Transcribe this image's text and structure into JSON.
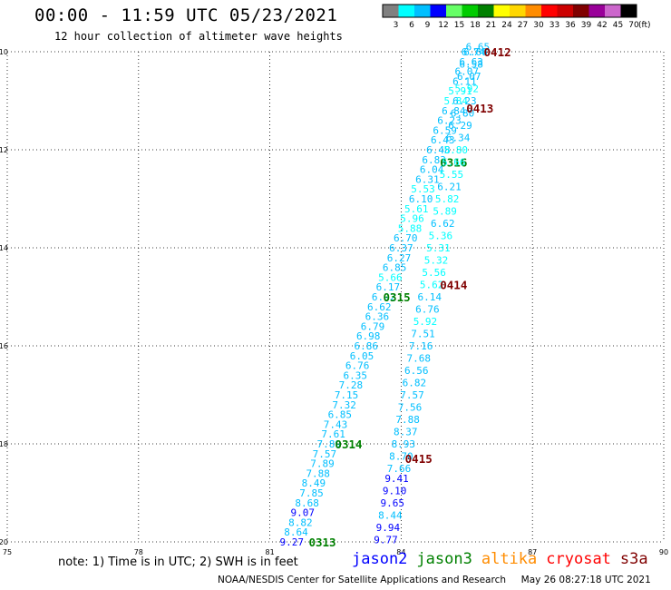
{
  "header": {
    "title": "00:00 - 11:59 UTC 05/23/2021",
    "subtitle": "12 hour collection of altimeter wave heights"
  },
  "legend": {
    "unit": "(ft)",
    "bins": [
      {
        "label": "3",
        "color": "#808080"
      },
      {
        "label": "6",
        "color": "#00ffff"
      },
      {
        "label": "9",
        "color": "#00bfff"
      },
      {
        "label": "12",
        "color": "#0000ff"
      },
      {
        "label": "15",
        "color": "#66ff66"
      },
      {
        "label": "18",
        "color": "#00cc00"
      },
      {
        "label": "21",
        "color": "#008000"
      },
      {
        "label": "24",
        "color": "#ffff00"
      },
      {
        "label": "27",
        "color": "#ffd700"
      },
      {
        "label": "30",
        "color": "#ff8c00"
      },
      {
        "label": "33",
        "color": "#ff0000"
      },
      {
        "label": "36",
        "color": "#cc0000"
      },
      {
        "label": "39",
        "color": "#800000"
      },
      {
        "label": "42",
        "color": "#990099"
      },
      {
        "label": "45",
        "color": "#cc66cc"
      },
      {
        "label": "70",
        "color": "#000000"
      }
    ]
  },
  "chart_data": {
    "type": "scatter",
    "title": "00:00 - 11:59 UTC 05/23/2021",
    "subtitle": "12 hour collection of altimeter wave heights",
    "xlabel": "",
    "ylabel": "",
    "xlim": [
      75,
      90
    ],
    "ylim": [
      -20,
      -10
    ],
    "x_ticks": [
      "75",
      "78",
      "81",
      "84",
      "87",
      "90"
    ],
    "y_ticks": [
      "-10",
      "-12",
      "-14",
      "-16",
      "-18",
      "-20"
    ],
    "grid": true,
    "series": [
      {
        "name": "jason3",
        "pass_labels": [
          {
            "text": "0313",
            "x": 82.2,
            "y": -20.0
          },
          {
            "text": "0314",
            "x": 82.8,
            "y": -18.0
          },
          {
            "text": "0315",
            "x": 83.9,
            "y": -15.0
          },
          {
            "text": "0316",
            "x": 85.2,
            "y": -12.25
          }
        ],
        "points": [
          {
            "x": 81.5,
            "y": -20.0,
            "v": "9.27",
            "c": "#0000ff"
          },
          {
            "x": 81.6,
            "y": -19.8,
            "v": "8.64",
            "c": "#00bfff"
          },
          {
            "x": 81.7,
            "y": -19.6,
            "v": "8.82",
            "c": "#00bfff"
          },
          {
            "x": 81.75,
            "y": -19.4,
            "v": "9.07",
            "c": "#0000ff"
          },
          {
            "x": 81.85,
            "y": -19.2,
            "v": "8.68",
            "c": "#00bfff"
          },
          {
            "x": 81.95,
            "y": -19.0,
            "v": "7.85",
            "c": "#00bfff"
          },
          {
            "x": 82.0,
            "y": -18.8,
            "v": "8.49",
            "c": "#00bfff"
          },
          {
            "x": 82.1,
            "y": -18.6,
            "v": "7.88",
            "c": "#00bfff"
          },
          {
            "x": 82.2,
            "y": -18.4,
            "v": "7.89",
            "c": "#00bfff"
          },
          {
            "x": 82.25,
            "y": -18.2,
            "v": "7.57",
            "c": "#00bfff"
          },
          {
            "x": 82.35,
            "y": -18.0,
            "v": "7.89",
            "c": "#00bfff"
          },
          {
            "x": 82.45,
            "y": -17.8,
            "v": "7.61",
            "c": "#00bfff"
          },
          {
            "x": 82.5,
            "y": -17.6,
            "v": "7.43",
            "c": "#00bfff"
          },
          {
            "x": 82.6,
            "y": -17.4,
            "v": "6.85",
            "c": "#00bfff"
          },
          {
            "x": 82.7,
            "y": -17.2,
            "v": "7.32",
            "c": "#00bfff"
          },
          {
            "x": 82.75,
            "y": -17.0,
            "v": "7.15",
            "c": "#00bfff"
          },
          {
            "x": 82.85,
            "y": -16.8,
            "v": "7.28",
            "c": "#00bfff"
          },
          {
            "x": 82.95,
            "y": -16.6,
            "v": "6.35",
            "c": "#00bfff"
          },
          {
            "x": 83.0,
            "y": -16.4,
            "v": "6.76",
            "c": "#00bfff"
          },
          {
            "x": 83.1,
            "y": -16.2,
            "v": "6.05",
            "c": "#00bfff"
          },
          {
            "x": 83.2,
            "y": -16.0,
            "v": "6.86",
            "c": "#00bfff"
          },
          {
            "x": 83.25,
            "y": -15.8,
            "v": "6.98",
            "c": "#00bfff"
          },
          {
            "x": 83.35,
            "y": -15.6,
            "v": "6.79",
            "c": "#00bfff"
          },
          {
            "x": 83.45,
            "y": -15.4,
            "v": "6.36",
            "c": "#00bfff"
          },
          {
            "x": 83.5,
            "y": -15.2,
            "v": "6.62",
            "c": "#00bfff"
          },
          {
            "x": 83.6,
            "y": -15.0,
            "v": "6.92",
            "c": "#00bfff"
          },
          {
            "x": 83.7,
            "y": -14.8,
            "v": "6.17",
            "c": "#00bfff"
          },
          {
            "x": 83.75,
            "y": -14.6,
            "v": "5.66",
            "c": "#00ffff"
          },
          {
            "x": 83.85,
            "y": -14.4,
            "v": "6.85",
            "c": "#00bfff"
          },
          {
            "x": 83.95,
            "y": -14.2,
            "v": "6.27",
            "c": "#00bfff"
          },
          {
            "x": 84.0,
            "y": -14.0,
            "v": "6.37",
            "c": "#00bfff"
          },
          {
            "x": 84.1,
            "y": -13.8,
            "v": "6.70",
            "c": "#00bfff"
          },
          {
            "x": 84.2,
            "y": -13.6,
            "v": "5.88",
            "c": "#00ffff"
          },
          {
            "x": 84.25,
            "y": -13.4,
            "v": "5.96",
            "c": "#00ffff"
          },
          {
            "x": 84.35,
            "y": -13.2,
            "v": "5.61",
            "c": "#00ffff"
          },
          {
            "x": 84.45,
            "y": -13.0,
            "v": "6.10",
            "c": "#00bfff"
          },
          {
            "x": 84.5,
            "y": -12.8,
            "v": "5.53",
            "c": "#00ffff"
          },
          {
            "x": 84.6,
            "y": -12.6,
            "v": "6.31",
            "c": "#00bfff"
          },
          {
            "x": 84.7,
            "y": -12.4,
            "v": "6.04",
            "c": "#00bfff"
          },
          {
            "x": 84.75,
            "y": -12.2,
            "v": "6.83",
            "c": "#00bfff"
          },
          {
            "x": 84.85,
            "y": -12.0,
            "v": "6.48",
            "c": "#00bfff"
          },
          {
            "x": 84.95,
            "y": -11.8,
            "v": "6.43",
            "c": "#00bfff"
          },
          {
            "x": 85.0,
            "y": -11.6,
            "v": "6.59",
            "c": "#00bfff"
          },
          {
            "x": 85.1,
            "y": -11.4,
            "v": "6.23",
            "c": "#00bfff"
          },
          {
            "x": 85.2,
            "y": -11.2,
            "v": "6.84",
            "c": "#00bfff"
          },
          {
            "x": 85.25,
            "y": -11.0,
            "v": "5.84",
            "c": "#00ffff"
          },
          {
            "x": 85.35,
            "y": -10.8,
            "v": "5.91",
            "c": "#00ffff"
          },
          {
            "x": 85.45,
            "y": -10.6,
            "v": "6.11",
            "c": "#00bfff"
          },
          {
            "x": 85.5,
            "y": -10.4,
            "v": "6.07",
            "c": "#00bfff"
          },
          {
            "x": 85.6,
            "y": -10.2,
            "v": "6.63",
            "c": "#00bfff"
          },
          {
            "x": 85.7,
            "y": -10.0,
            "v": "6.66",
            "c": "#00bfff"
          }
        ]
      },
      {
        "name": "cryosat",
        "pass_labels": [
          {
            "text": "0412",
            "x": 86.2,
            "y": -10.0
          },
          {
            "text": "0413",
            "x": 85.8,
            "y": -11.15
          },
          {
            "text": "0414",
            "x": 85.2,
            "y": -14.75
          },
          {
            "text": "0415",
            "x": 84.4,
            "y": -18.3
          }
        ],
        "points": [
          {
            "x": 83.65,
            "y": -19.95,
            "v": "9.77",
            "c": "#0000ff"
          },
          {
            "x": 83.7,
            "y": -19.7,
            "v": "9.94",
            "c": "#0000ff"
          },
          {
            "x": 83.75,
            "y": -19.45,
            "v": "8.44",
            "c": "#00bfff"
          },
          {
            "x": 83.8,
            "y": -19.2,
            "v": "9.65",
            "c": "#0000ff"
          },
          {
            "x": 83.85,
            "y": -18.95,
            "v": "9.10",
            "c": "#0000ff"
          },
          {
            "x": 83.9,
            "y": -18.7,
            "v": "9.41",
            "c": "#0000ff"
          },
          {
            "x": 83.95,
            "y": -18.5,
            "v": "7.66",
            "c": "#00bfff"
          },
          {
            "x": 84.0,
            "y": -18.25,
            "v": "8.70",
            "c": "#00bfff"
          },
          {
            "x": 84.05,
            "y": -18.0,
            "v": "8.93",
            "c": "#00bfff"
          },
          {
            "x": 84.1,
            "y": -17.75,
            "v": "8.37",
            "c": "#00bfff"
          },
          {
            "x": 84.15,
            "y": -17.5,
            "v": "7.88",
            "c": "#00bfff"
          },
          {
            "x": 84.2,
            "y": -17.25,
            "v": "7.56",
            "c": "#00bfff"
          },
          {
            "x": 84.25,
            "y": -17.0,
            "v": "7.57",
            "c": "#00bfff"
          },
          {
            "x": 84.3,
            "y": -16.75,
            "v": "6.82",
            "c": "#00bfff"
          },
          {
            "x": 84.35,
            "y": -16.5,
            "v": "6.56",
            "c": "#00bfff"
          },
          {
            "x": 84.4,
            "y": -16.25,
            "v": "7.68",
            "c": "#00bfff"
          },
          {
            "x": 84.45,
            "y": -16.0,
            "v": "7.16",
            "c": "#00bfff"
          },
          {
            "x": 84.5,
            "y": -15.75,
            "v": "7.51",
            "c": "#00bfff"
          },
          {
            "x": 84.55,
            "y": -15.5,
            "v": "5.92",
            "c": "#00ffff"
          },
          {
            "x": 84.6,
            "y": -15.25,
            "v": "6.76",
            "c": "#00bfff"
          },
          {
            "x": 84.65,
            "y": -15.0,
            "v": "6.14",
            "c": "#00bfff"
          },
          {
            "x": 84.7,
            "y": -14.75,
            "v": "5.62",
            "c": "#00ffff"
          },
          {
            "x": 84.75,
            "y": -14.5,
            "v": "5.56",
            "c": "#00ffff"
          },
          {
            "x": 84.8,
            "y": -14.25,
            "v": "5.32",
            "c": "#00ffff"
          },
          {
            "x": 84.85,
            "y": -14.0,
            "v": "5.31",
            "c": "#00ffff"
          },
          {
            "x": 84.9,
            "y": -13.75,
            "v": "5.36",
            "c": "#00ffff"
          },
          {
            "x": 84.95,
            "y": -13.5,
            "v": "6.62",
            "c": "#00bfff"
          },
          {
            "x": 85.0,
            "y": -13.25,
            "v": "5.89",
            "c": "#00ffff"
          },
          {
            "x": 85.05,
            "y": -13.0,
            "v": "5.82",
            "c": "#00ffff"
          },
          {
            "x": 85.1,
            "y": -12.75,
            "v": "6.21",
            "c": "#00bfff"
          },
          {
            "x": 85.15,
            "y": -12.5,
            "v": "5.55",
            "c": "#00ffff"
          },
          {
            "x": 85.2,
            "y": -12.25,
            "v": "5.66",
            "c": "#00ffff"
          },
          {
            "x": 85.25,
            "y": -12.0,
            "v": "5.80",
            "c": "#00ffff"
          },
          {
            "x": 85.3,
            "y": -11.75,
            "v": "6.34",
            "c": "#00bfff"
          },
          {
            "x": 85.35,
            "y": -11.5,
            "v": "6.29",
            "c": "#00bfff"
          },
          {
            "x": 85.4,
            "y": -11.25,
            "v": "6.80",
            "c": "#00bfff"
          },
          {
            "x": 85.45,
            "y": -11.0,
            "v": "6.23",
            "c": "#00bfff"
          },
          {
            "x": 85.5,
            "y": -10.75,
            "v": "5.92",
            "c": "#00ffff"
          },
          {
            "x": 85.55,
            "y": -10.5,
            "v": "6.07",
            "c": "#00bfff"
          },
          {
            "x": 85.6,
            "y": -10.25,
            "v": "6.58",
            "c": "#00bfff"
          },
          {
            "x": 85.65,
            "y": -10.0,
            "v": "6.74",
            "c": "#00bfff"
          },
          {
            "x": 85.75,
            "y": -9.9,
            "v": "6.65",
            "c": "#00bfff"
          }
        ]
      }
    ]
  },
  "footer": {
    "note": "note: 1) Time is in UTC; 2) SWH is in feet",
    "credit": "NOAA/NESDIS Center for Satellite Applications and Research     May 26 08:27:18 UTC 2021",
    "satellites": [
      {
        "name": "jason2",
        "color": "#0000ff"
      },
      {
        "name": "jason3",
        "color": "#008000"
      },
      {
        "name": "altika",
        "color": "#ff8c00"
      },
      {
        "name": "cryosat",
        "color": "#ff0000"
      },
      {
        "name": "s3a",
        "color": "#800000"
      }
    ]
  }
}
